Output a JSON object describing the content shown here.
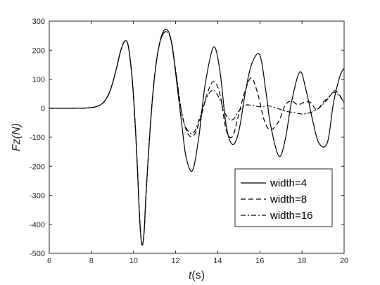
{
  "chart_data": {
    "type": "line",
    "title": "",
    "xlabel_main": "t",
    "xlabel_unit": "(s)",
    "ylabel": "Fz(N)",
    "xlim": [
      6,
      20
    ],
    "ylim": [
      -500,
      300
    ],
    "xticks": [
      6,
      8,
      10,
      12,
      14,
      16,
      18,
      20
    ],
    "yticks": [
      -500,
      -400,
      -300,
      -200,
      -100,
      0,
      100,
      200,
      300
    ],
    "grid": false,
    "legend_position": "bottom-right",
    "series": [
      {
        "name": "width=4",
        "line_style": "solid",
        "color": "#000000",
        "x": [
          6,
          7,
          8,
          8.5,
          8.8,
          9.0,
          9.2,
          9.4,
          9.6,
          9.75,
          9.9,
          10.0,
          10.1,
          10.2,
          10.3,
          10.4,
          10.5,
          10.6,
          10.8,
          11.0,
          11.2,
          11.4,
          11.6,
          11.75,
          11.9,
          12.1,
          12.3,
          12.5,
          12.8,
          13.1,
          13.4,
          13.8,
          14.1,
          14.4,
          14.7,
          15.0,
          15.3,
          15.6,
          16.0,
          16.3,
          16.5,
          16.9,
          17.2,
          17.5,
          17.9,
          18.2,
          18.5,
          18.8,
          19.2,
          19.5,
          19.8,
          20.0
        ],
        "y": [
          0,
          0,
          2,
          15,
          45,
          85,
          140,
          200,
          232,
          215,
          130,
          40,
          -80,
          -230,
          -390,
          -470,
          -430,
          -290,
          -60,
          110,
          210,
          262,
          270,
          245,
          180,
          60,
          -60,
          -170,
          -215,
          -100,
          80,
          210,
          130,
          -60,
          -125,
          -80,
          50,
          150,
          183,
          50,
          -55,
          -165,
          -110,
          20,
          125,
          60,
          -40,
          -120,
          -120,
          20,
          110,
          138
        ]
      },
      {
        "name": "width=8",
        "line_style": "dashed",
        "color": "#000000",
        "x": [
          6,
          7,
          8,
          8.5,
          8.8,
          9.0,
          9.2,
          9.4,
          9.6,
          9.75,
          9.9,
          10.0,
          10.1,
          10.2,
          10.3,
          10.4,
          10.5,
          10.6,
          10.8,
          11.0,
          11.2,
          11.4,
          11.6,
          11.8,
          12.0,
          12.3,
          12.6,
          12.9,
          13.2,
          13.5,
          13.8,
          14.1,
          14.4,
          14.7,
          15.0,
          15.3,
          15.6,
          15.9,
          16.2,
          16.5,
          16.9,
          17.2,
          17.5,
          17.8,
          18.1,
          18.4,
          18.7,
          19.0,
          19.3,
          19.6,
          20.0
        ],
        "y": [
          0,
          0,
          2,
          15,
          45,
          85,
          140,
          200,
          232,
          215,
          130,
          40,
          -80,
          -230,
          -390,
          -470,
          -430,
          -290,
          -60,
          110,
          210,
          255,
          262,
          230,
          130,
          -20,
          -90,
          -90,
          -30,
          50,
          92,
          50,
          -75,
          -98,
          -20,
          60,
          104,
          50,
          -40,
          -75,
          -45,
          10,
          25,
          12,
          20,
          20,
          -5,
          20,
          40,
          60,
          20
        ]
      },
      {
        "name": "width=16",
        "line_style": "dash-dot",
        "color": "#000000",
        "x": [
          6,
          7,
          8,
          8.5,
          8.8,
          9.0,
          9.2,
          9.4,
          9.6,
          9.75,
          9.9,
          10.0,
          10.1,
          10.2,
          10.3,
          10.4,
          10.5,
          10.6,
          10.8,
          11.0,
          11.2,
          11.4,
          11.6,
          11.8,
          12.0,
          12.3,
          12.6,
          12.9,
          13.2,
          13.5,
          13.8,
          14.1,
          14.4,
          14.7,
          15.0,
          15.3,
          15.6,
          16.0,
          16.4,
          16.8,
          17.2,
          17.6,
          18.0,
          18.4,
          18.8,
          19.2,
          19.5,
          19.8,
          20.0
        ],
        "y": [
          0,
          0,
          2,
          15,
          45,
          85,
          140,
          200,
          232,
          215,
          130,
          40,
          -80,
          -230,
          -390,
          -470,
          -430,
          -290,
          -60,
          110,
          210,
          255,
          262,
          230,
          130,
          -20,
          -80,
          -80,
          -20,
          40,
          62,
          30,
          -25,
          -40,
          -10,
          10,
          10,
          5,
          8,
          0,
          -10,
          -15,
          -20,
          -15,
          0,
          30,
          55,
          40,
          20
        ]
      }
    ]
  }
}
